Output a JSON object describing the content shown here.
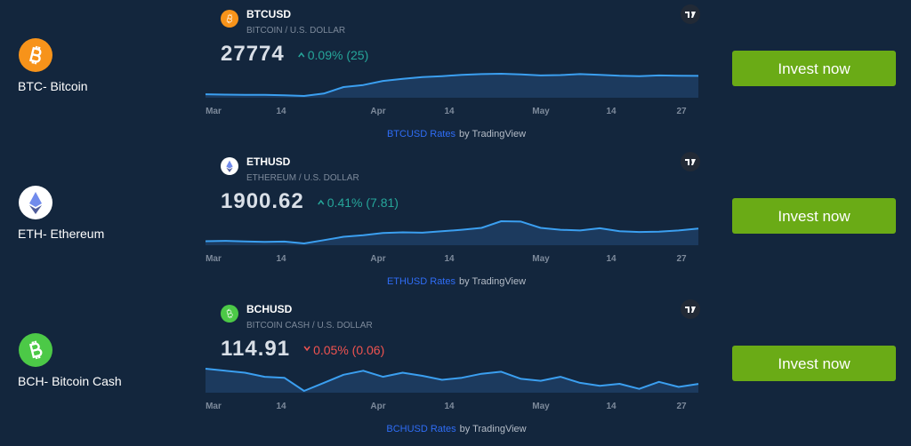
{
  "rows": [
    {
      "name": "BTC- Bitcoin",
      "symbol": "BTCUSD",
      "description": "BITCOIN / U.S. DOLLAR",
      "price": "27774",
      "change": "0.09% (25)",
      "direction": "up",
      "axis_labels": [
        "Mar",
        "14",
        "Apr",
        "14",
        "May",
        "14",
        "27"
      ],
      "attribution_link": "BTCUSD Rates",
      "attribution_by": "by TradingView",
      "button": "Invest now",
      "sparkline": [
        22400,
        22300,
        22200,
        22250,
        22100,
        21900,
        22600,
        24500,
        25100,
        26300,
        26900,
        27400,
        27700,
        28100,
        28300,
        28400,
        28200,
        27900,
        28000,
        28300,
        28100,
        27800,
        27700,
        27900,
        27800,
        27774
      ]
    },
    {
      "name": "ETH- Ethereum",
      "symbol": "ETHUSD",
      "description": "ETHEREUM / U.S. DOLLAR",
      "price": "1900.62",
      "change": "0.41% (7.81)",
      "direction": "up",
      "axis_labels": [
        "Mar",
        "14",
        "Apr",
        "14",
        "May",
        "14",
        "27"
      ],
      "attribution_link": "ETHUSD Rates",
      "attribution_by": "by TradingView",
      "button": "Invest now",
      "sparkline": [
        1560,
        1570,
        1555,
        1540,
        1550,
        1500,
        1590,
        1680,
        1720,
        1780,
        1800,
        1790,
        1830,
        1870,
        1920,
        2100,
        2090,
        1920,
        1870,
        1850,
        1910,
        1830,
        1810,
        1820,
        1850,
        1900.62
      ]
    },
    {
      "name": "BCH- Bitcoin Cash",
      "symbol": "BCHUSD",
      "description": "BITCOIN CASH / U.S. DOLLAR",
      "price": "114.91",
      "change": "0.05% (0.06)",
      "direction": "down",
      "axis_labels": [
        "Mar",
        "14",
        "Apr",
        "14",
        "May",
        "14",
        "27"
      ],
      "attribution_link": "BCHUSD Rates",
      "attribution_by": "by TradingView",
      "button": "Invest now",
      "sparkline": [
        130,
        128,
        126,
        122,
        121,
        108,
        116,
        124,
        128,
        122,
        126,
        123,
        119,
        121,
        125,
        127,
        120,
        118,
        122,
        116,
        113,
        115,
        110,
        117,
        112,
        114.91
      ]
    }
  ]
}
